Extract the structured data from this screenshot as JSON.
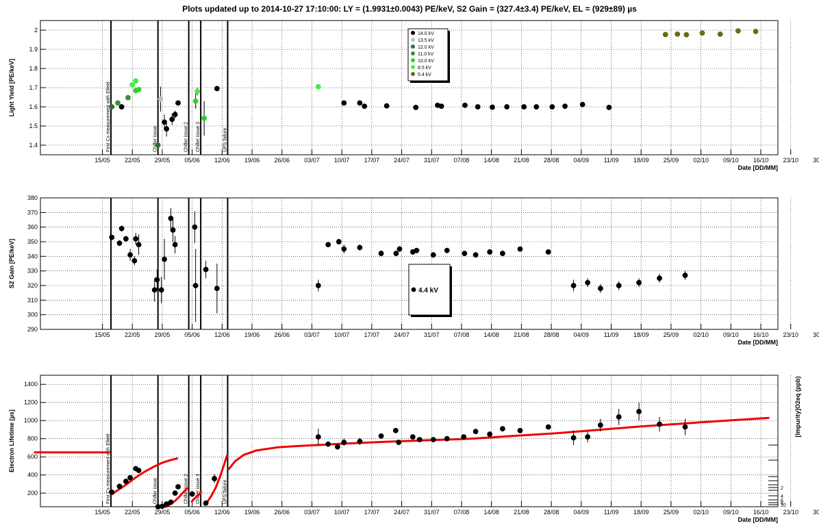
{
  "title": "Plots updated up to 2014-10-27 17:10:00: LY = (1.9931±0.0043) PE/keV, S2 Gain = (327.4±3.4) PE/keV, EL = (929±89) µs",
  "x_axis": {
    "label": "Date [DD/MM]",
    "ticks": [
      "15/05",
      "22/05",
      "29/05",
      "05/06",
      "12/06",
      "19/06",
      "26/06",
      "03/07",
      "10/07",
      "17/07",
      "24/07",
      "31/07",
      "07/08",
      "14/08",
      "21/08",
      "28/08",
      "04/09",
      "11/09",
      "18/09",
      "25/09",
      "02/10",
      "09/10",
      "16/10",
      "23/10",
      "30/10"
    ]
  },
  "events": [
    {
      "day": 16,
      "label": "First Cs measurement with Efield"
    },
    {
      "day": 27,
      "label": "Chiller issue"
    },
    {
      "day": 34.2,
      "label": "Chiller issue 2"
    },
    {
      "day": 37,
      "label": "Chiller issue 3"
    },
    {
      "day": 43.3,
      "label": "UPS failure"
    }
  ],
  "colors": {
    "14.0 kV": "#000000",
    "13.5 kV": "#c0c0c0",
    "12.0 kV": "#2f6f2f",
    "11.0 kV": "#3a8f3a",
    "10.0 kV": "#33cc33",
    "8.5 kV": "#44ee44",
    "5.4 kV": "#6b6b14",
    "fit": "#ee0000"
  },
  "chart_data": [
    {
      "type": "scatter",
      "ylabel": "Light Yield [PE/keV]",
      "xlabel": "Date [DD/MM]",
      "ylim": [
        1.35,
        2.05
      ],
      "yticks": [
        1.4,
        1.5,
        1.6,
        1.7,
        1.8,
        1.9,
        2
      ],
      "grid": true,
      "legend_position": "top-center",
      "series": [
        {
          "name": "14.0 kV",
          "points": [
            [
              18.5,
              1.6,
              0
            ],
            [
              28.5,
              1.52,
              0.04
            ],
            [
              29,
              1.485,
              0.04
            ],
            [
              30.3,
              1.535,
              0.03
            ],
            [
              31,
              1.56,
              0.02
            ],
            [
              31.7,
              1.62,
              0
            ],
            [
              40.8,
              1.695,
              0
            ],
            [
              70.5,
              1.62,
              0
            ],
            [
              74.2,
              1.62,
              0
            ],
            [
              75.3,
              1.603,
              0
            ],
            [
              80.5,
              1.605,
              0
            ],
            [
              87.3,
              1.597,
              0
            ],
            [
              92.4,
              1.608,
              0
            ],
            [
              93.3,
              1.603,
              0
            ],
            [
              98.8,
              1.608,
              0
            ],
            [
              101.8,
              1.6,
              0
            ],
            [
              105.2,
              1.598,
              0
            ],
            [
              108.6,
              1.6,
              0
            ],
            [
              112.6,
              1.6,
              0
            ],
            [
              115.5,
              1.6,
              0
            ],
            [
              119.2,
              1.6,
              0
            ],
            [
              122.2,
              1.603,
              0
            ],
            [
              126.3,
              1.612,
              0
            ],
            [
              132.5,
              1.597,
              0
            ]
          ]
        },
        {
          "name": "13.5 kV",
          "points": [
            [
              27.6,
              1.64,
              0.065
            ]
          ]
        },
        {
          "name": "12.0 kV",
          "points": [
            [
              16.2,
              1.6,
              0
            ],
            [
              27,
              1.4,
              0.02
            ]
          ]
        },
        {
          "name": "11.0 kV",
          "points": [
            [
              17.6,
              1.62,
              0
            ],
            [
              20,
              1.648,
              0
            ]
          ]
        },
        {
          "name": "10.0 kV",
          "points": [
            [
              21.8,
              1.685,
              0
            ],
            [
              22.5,
              1.69,
              0
            ],
            [
              35.8,
              1.63,
              0.04
            ],
            [
              37.8,
              1.54,
              0.09
            ]
          ]
        },
        {
          "name": "8.5 kV",
          "points": [
            [
              21,
              1.715,
              0
            ],
            [
              21.8,
              1.735,
              0
            ],
            [
              36.2,
              1.68,
              0.02
            ],
            [
              64.5,
              1.705,
              0
            ]
          ]
        },
        {
          "name": "5.4 kV",
          "points": [
            [
              145.7,
              1.977,
              0
            ],
            [
              148.5,
              1.979,
              0
            ],
            [
              150.6,
              1.976,
              0
            ],
            [
              154.3,
              1.985,
              0
            ],
            [
              158.5,
              1.979,
              0
            ],
            [
              162.7,
              1.996,
              0
            ],
            [
              166.8,
              1.993,
              0
            ]
          ]
        }
      ]
    },
    {
      "type": "scatter",
      "ylabel": "S2 Gain [PE/keV]",
      "xlabel": "Date [DD/MM]",
      "ylim": [
        290,
        380
      ],
      "yticks": [
        290,
        300,
        310,
        320,
        330,
        340,
        350,
        360,
        370,
        380
      ],
      "grid": true,
      "legend_position": "center",
      "series": [
        {
          "name": "4.4 kV",
          "points": [
            [
              16.2,
              353,
              0
            ],
            [
              18,
              349,
              2
            ],
            [
              18.5,
              359,
              2
            ],
            [
              19.5,
              352,
              2
            ],
            [
              20.5,
              341,
              4
            ],
            [
              21.5,
              337,
              3
            ],
            [
              21.8,
              352,
              4
            ],
            [
              22.5,
              348,
              7
            ],
            [
              26.2,
              317,
              8
            ],
            [
              26.8,
              324,
              7
            ],
            [
              27.8,
              317,
              9
            ],
            [
              28.5,
              338,
              14
            ],
            [
              30,
              366,
              7
            ],
            [
              30.5,
              358,
              8
            ],
            [
              31,
              348,
              6
            ],
            [
              35.6,
              360,
              11
            ],
            [
              35.8,
              320,
              25
            ],
            [
              38.2,
              331,
              6
            ],
            [
              40.8,
              318,
              17
            ],
            [
              64.5,
              320,
              4
            ],
            [
              66.8,
              348,
              0
            ],
            [
              69.3,
              350,
              2
            ],
            [
              70.5,
              345,
              3
            ],
            [
              74.2,
              346,
              2
            ],
            [
              79.2,
              342,
              2
            ],
            [
              82.7,
              342,
              0
            ],
            [
              83.5,
              345,
              2
            ],
            [
              86.6,
              343,
              0
            ],
            [
              87.5,
              344,
              0
            ],
            [
              91.4,
              341,
              0
            ],
            [
              94.6,
              344,
              0
            ],
            [
              98.7,
              342,
              0
            ],
            [
              101.3,
              341,
              0
            ],
            [
              104.6,
              343,
              0
            ],
            [
              107.6,
              342,
              0
            ],
            [
              111.7,
              345,
              0
            ],
            [
              118.3,
              343,
              0
            ],
            [
              124.2,
              320,
              4
            ],
            [
              127.5,
              322,
              3
            ],
            [
              130.5,
              318,
              3
            ],
            [
              134.8,
              320,
              3
            ],
            [
              139.5,
              322,
              3
            ],
            [
              144.3,
              325,
              3
            ],
            [
              150.3,
              327,
              3
            ]
          ]
        }
      ]
    },
    {
      "type": "scatter",
      "ylabel": "Electron Lifetime [µs]",
      "xlabel": "Date [DD/MM]",
      "ylim": [
        50,
        1500
      ],
      "yticks": [
        200,
        400,
        600,
        800,
        1000,
        1200,
        1400
      ],
      "grid": true,
      "right_axis_label": "[Impurity]O2eq (ppb)",
      "right_axis_ticks": [
        "2",
        "4",
        "6",
        "8",
        "10"
      ],
      "series": [
        {
          "name": "14.0 kV",
          "points": [
            [
              16.2,
              210,
              0
            ],
            [
              18,
              275,
              0
            ],
            [
              19.5,
              330,
              0
            ],
            [
              20.5,
              370,
              0
            ],
            [
              21.8,
              470,
              0
            ],
            [
              22.5,
              450,
              0
            ],
            [
              27,
              40,
              0
            ],
            [
              28,
              55,
              0
            ],
            [
              29,
              80,
              0
            ],
            [
              30,
              100,
              0
            ],
            [
              31,
              200,
              0
            ],
            [
              31.7,
              270,
              0
            ],
            [
              35,
              190,
              0
            ],
            [
              38.2,
              90,
              0
            ],
            [
              40.2,
              360,
              50
            ],
            [
              64.5,
              820,
              90
            ],
            [
              66.8,
              740,
              0
            ],
            [
              69,
              710,
              0
            ],
            [
              70.5,
              760,
              40
            ],
            [
              74.2,
              770,
              40
            ],
            [
              79.2,
              830,
              0
            ],
            [
              82.6,
              890,
              0
            ],
            [
              83.3,
              760,
              0
            ],
            [
              86.6,
              820,
              0
            ],
            [
              88.2,
              790,
              0
            ],
            [
              91.4,
              790,
              0
            ],
            [
              94.6,
              800,
              0
            ],
            [
              98.5,
              820,
              0
            ],
            [
              101.3,
              880,
              0
            ],
            [
              104.6,
              850,
              0
            ],
            [
              107.6,
              910,
              0
            ],
            [
              111.7,
              890,
              0
            ],
            [
              118.3,
              930,
              0
            ],
            [
              124.2,
              810,
              80
            ],
            [
              127.5,
              820,
              60
            ],
            [
              130.5,
              950,
              70
            ],
            [
              134.8,
              1040,
              90
            ],
            [
              139.5,
              1100,
              100
            ],
            [
              144.3,
              960,
              80
            ],
            [
              150.3,
              930,
              90
            ]
          ]
        }
      ],
      "fit_segments": [
        {
          "name": "fit",
          "points": [
            [
              -2,
              650
            ],
            [
              15.8,
              650
            ]
          ]
        },
        {
          "name": "fit",
          "points": [
            [
              16.2,
              185
            ],
            [
              17,
              215
            ],
            [
              18.5,
              260
            ],
            [
              20,
              310
            ],
            [
              22,
              380
            ],
            [
              24,
              440
            ],
            [
              26,
              490
            ],
            [
              28,
              535
            ],
            [
              30,
              565
            ],
            [
              31.7,
              585
            ]
          ]
        },
        {
          "name": "fit",
          "points": [
            [
              27.2,
              20
            ],
            [
              28,
              30
            ],
            [
              29,
              50
            ],
            [
              30,
              80
            ],
            [
              31,
              115
            ],
            [
              32,
              160
            ],
            [
              33,
              215
            ],
            [
              34,
              260
            ]
          ]
        },
        {
          "name": "fit",
          "points": [
            [
              34.8,
              100
            ],
            [
              35.5,
              140
            ],
            [
              36.5,
              180
            ],
            [
              37.2,
              220
            ]
          ]
        },
        {
          "name": "fit",
          "points": [
            [
              37.7,
              70
            ],
            [
              38.5,
              100
            ],
            [
              39.5,
              170
            ],
            [
              40.5,
              260
            ],
            [
              41.5,
              380
            ],
            [
              42.5,
              520
            ],
            [
              43.2,
              620
            ]
          ]
        },
        {
          "name": "fit",
          "points": [
            [
              43.5,
              460
            ],
            [
              45,
              550
            ],
            [
              47,
              620
            ],
            [
              50,
              670
            ],
            [
              55,
              705
            ],
            [
              60,
              720
            ],
            [
              65,
              732
            ],
            [
              70,
              745
            ],
            [
              80,
              765
            ],
            [
              100,
              800
            ],
            [
              120,
              860
            ],
            [
              140,
              935
            ],
            [
              160,
              1000
            ],
            [
              170,
              1030
            ]
          ]
        }
      ]
    }
  ]
}
